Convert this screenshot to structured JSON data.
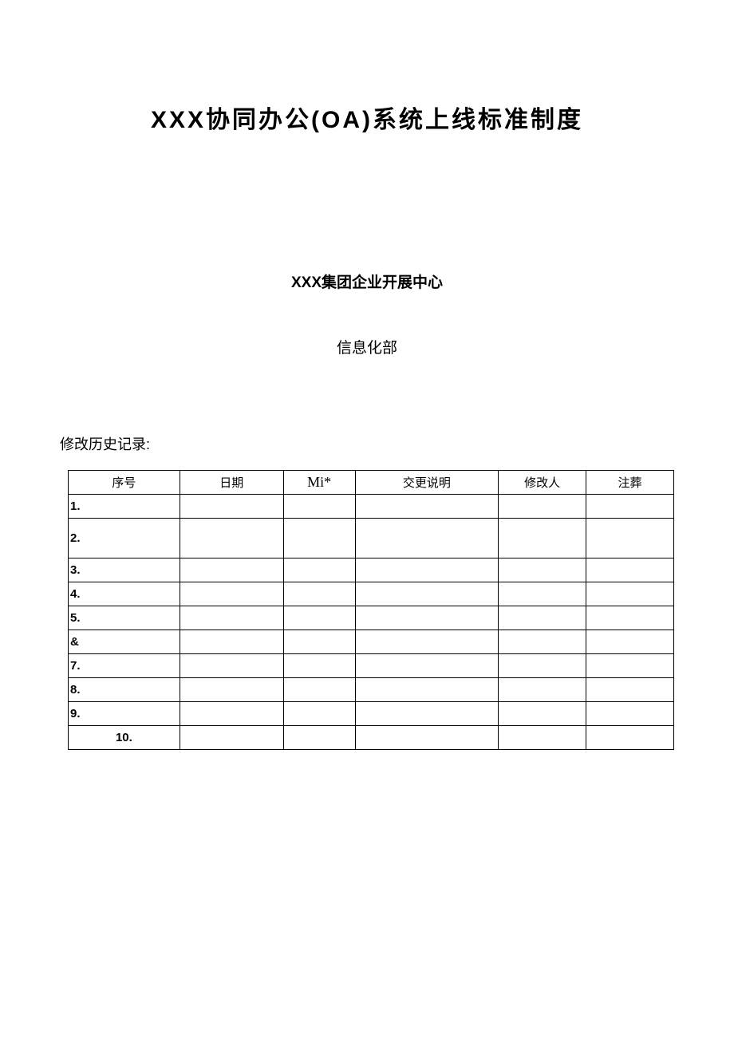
{
  "document": {
    "title": "XXX协同办公(OA)系统上线标准制度",
    "org": "XXX集团企业开展中心",
    "dept": "信息化部",
    "history_label": "修改历史记录:",
    "table": {
      "columns": [
        "序号",
        "日期",
        "Mi*",
        "交更说明",
        "修改人",
        "注葬"
      ],
      "rows": [
        {
          "seq": "1.",
          "date": "",
          "mi": "",
          "desc": "",
          "editor": "",
          "note": "",
          "height": "normal",
          "align": "left"
        },
        {
          "seq": "2.",
          "date": "",
          "mi": "",
          "desc": "",
          "editor": "",
          "note": "",
          "height": "tall",
          "align": "left"
        },
        {
          "seq": "3.",
          "date": "",
          "mi": "",
          "desc": "",
          "editor": "",
          "note": "",
          "height": "normal",
          "align": "left"
        },
        {
          "seq": "4.",
          "date": "",
          "mi": "",
          "desc": "",
          "editor": "",
          "note": "",
          "height": "short",
          "align": "left"
        },
        {
          "seq": "5.",
          "date": "",
          "mi": "",
          "desc": "",
          "editor": "",
          "note": "",
          "height": "normal",
          "align": "left"
        },
        {
          "seq": "&",
          "date": "",
          "mi": "",
          "desc": "",
          "editor": "",
          "note": "",
          "height": "short",
          "align": "left"
        },
        {
          "seq": "7.",
          "date": "",
          "mi": "",
          "desc": "",
          "editor": "",
          "note": "",
          "height": "normal",
          "align": "left"
        },
        {
          "seq": "8.",
          "date": "",
          "mi": "",
          "desc": "",
          "editor": "",
          "note": "",
          "height": "short",
          "align": "left"
        },
        {
          "seq": "9.",
          "date": "",
          "mi": "",
          "desc": "",
          "editor": "",
          "note": "",
          "height": "short",
          "align": "left"
        },
        {
          "seq": "10.",
          "date": "",
          "mi": "",
          "desc": "",
          "editor": "",
          "note": "",
          "height": "normal",
          "align": "center"
        }
      ]
    }
  },
  "styling": {
    "background_color": "#ffffff",
    "text_color": "#000000",
    "border_color": "#000000",
    "title_fontsize": 30,
    "subtitle_fontsize": 19,
    "body_fontsize": 18,
    "table_fontsize": 15
  }
}
